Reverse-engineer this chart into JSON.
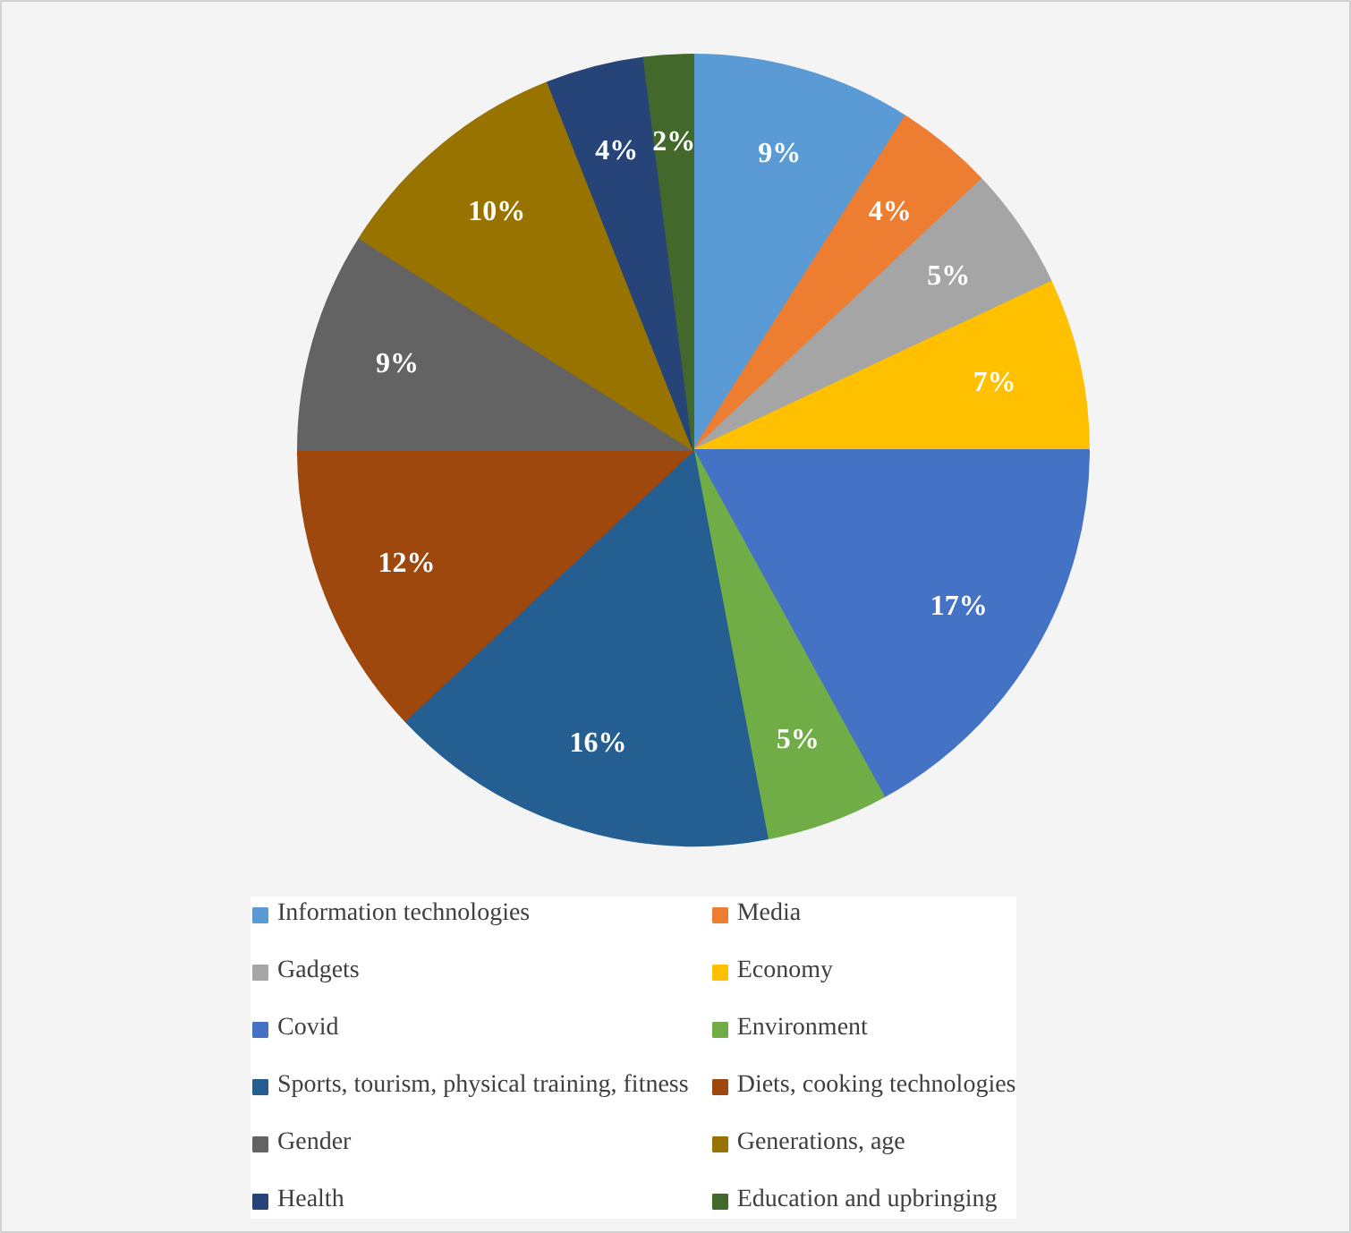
{
  "chart_data": {
    "type": "pie",
    "categories": [
      "Information technologies",
      "Media",
      "Gadgets",
      "Economy",
      "Covid",
      "Environment",
      "Sports, tourism, physical training, fitness",
      "Diets, cooking technologies",
      "Gender",
      "Generations, age",
      "Health",
      "Education and upbringing"
    ],
    "values": [
      9,
      4,
      5,
      7,
      17,
      5,
      16,
      12,
      9,
      10,
      4,
      2
    ],
    "colors": [
      "#5b9bd5",
      "#ed7d31",
      "#a5a5a5",
      "#ffc000",
      "#4472c4",
      "#70ad47",
      "#255e91",
      "#9e480e",
      "#636363",
      "#997300",
      "#264478",
      "#43682b"
    ],
    "value_labels": [
      "9%",
      "4%",
      "5%",
      "7%",
      "17%",
      "5%",
      "16%",
      "12%",
      "9%",
      "10%",
      "4%",
      "2%"
    ],
    "legend": "bottom"
  }
}
